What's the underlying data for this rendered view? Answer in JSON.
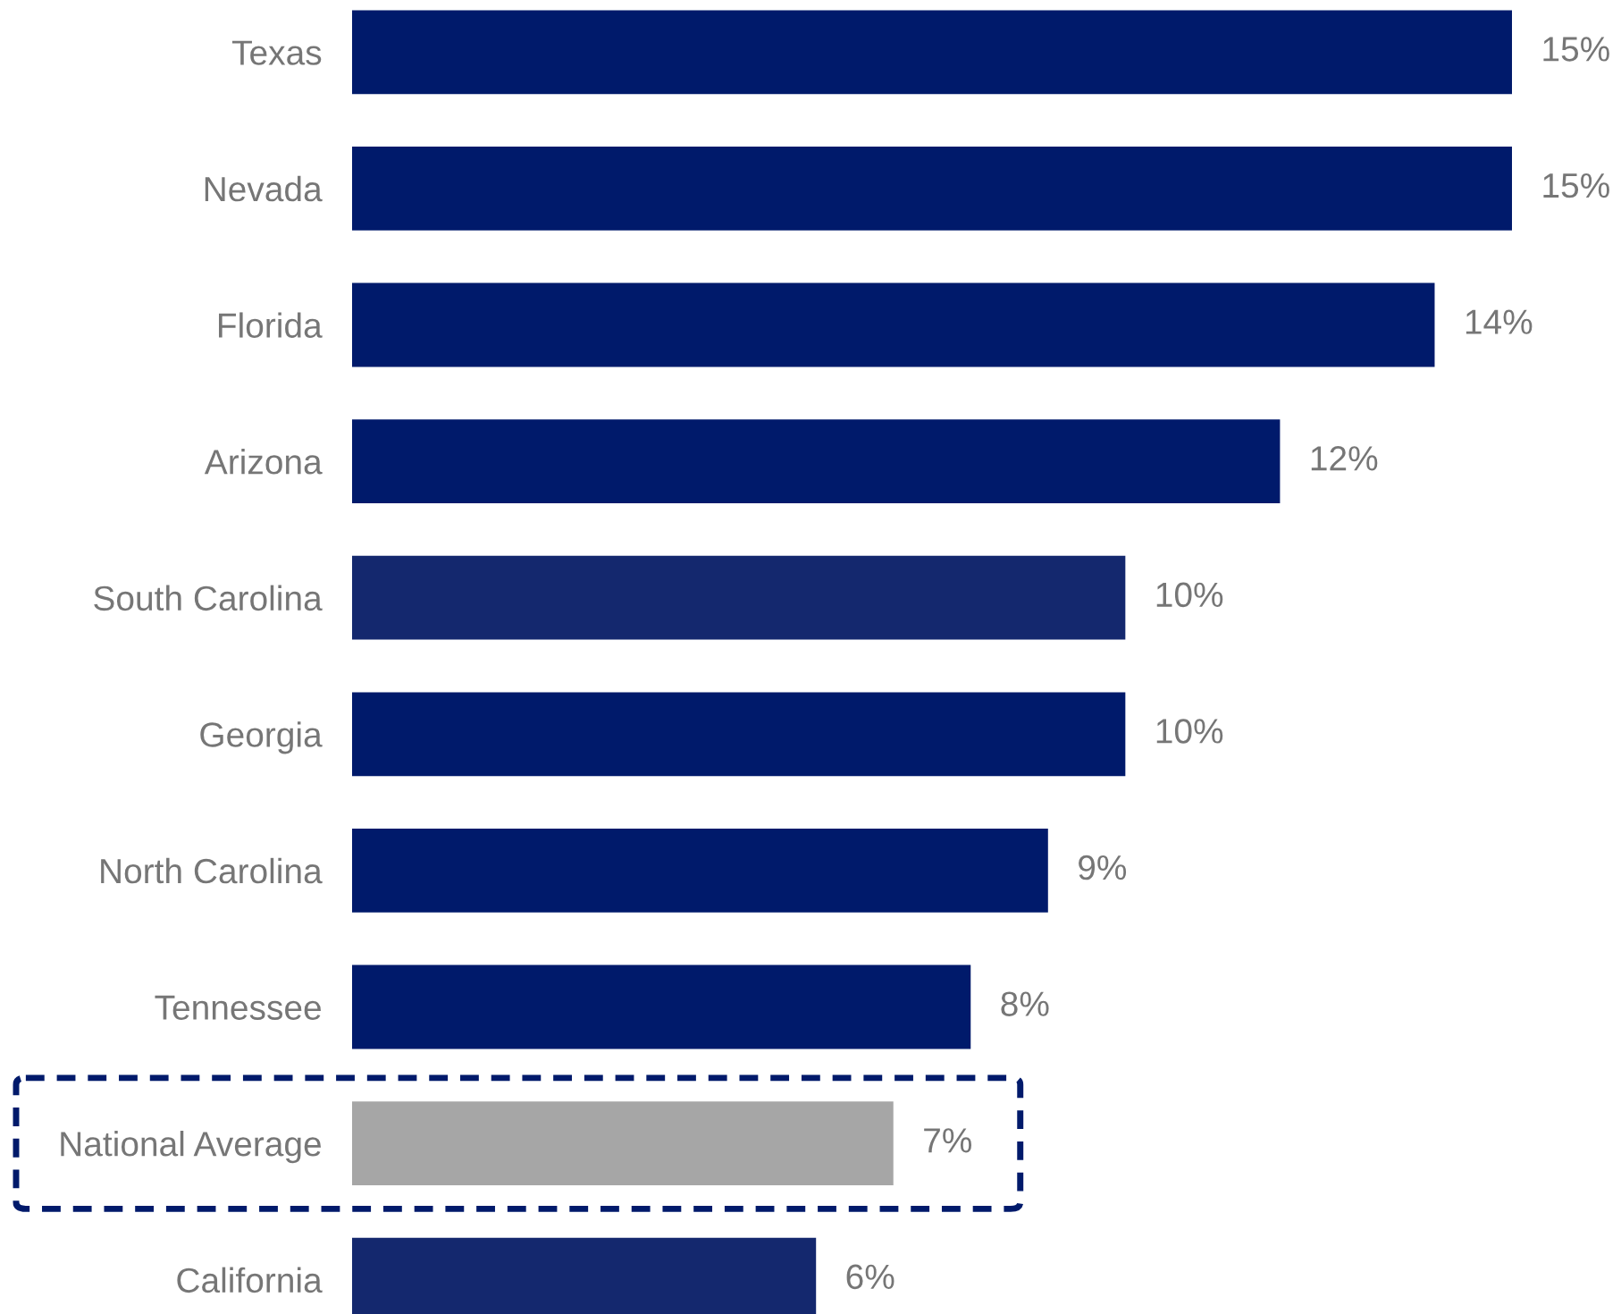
{
  "chart_data": {
    "type": "bar",
    "orientation": "horizontal",
    "categories": [
      "Texas",
      "Nevada",
      "Florida",
      "Arizona",
      "South Carolina",
      "Georgia",
      "North Carolina",
      "Tennessee",
      "National Average",
      "California"
    ],
    "values": [
      15,
      15,
      14,
      12,
      10,
      10,
      9,
      8,
      7,
      6
    ],
    "colors": [
      "#001a6b",
      "#001a6b",
      "#001a6b",
      "#001a6b",
      "#14286e",
      "#001a6b",
      "#001a6b",
      "#001a6b",
      "#a6a6a6",
      "#14286e"
    ],
    "value_labels": [
      "15%",
      "15%",
      "14%",
      "12%",
      "10%",
      "10%",
      "9%",
      "8%",
      "7%",
      "6%"
    ],
    "grid": false
  }
}
